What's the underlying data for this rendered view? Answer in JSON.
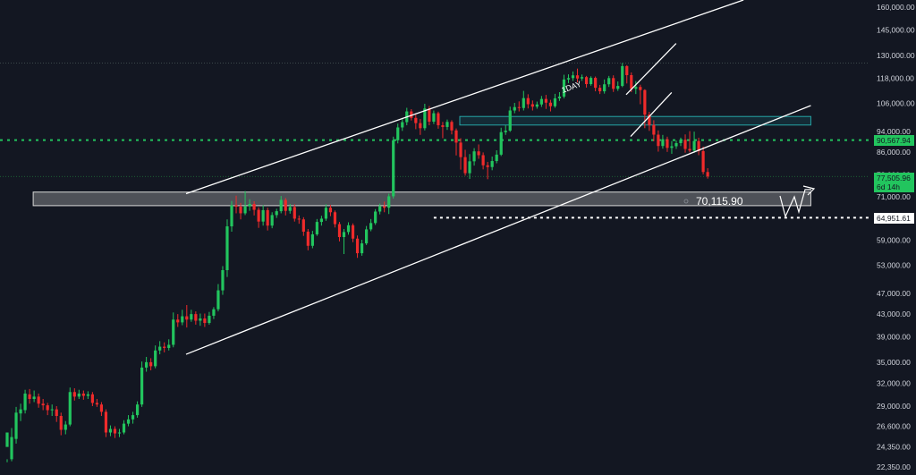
{
  "chart_data": {
    "type": "candlestick",
    "timeframe_label": "1DAY",
    "ylim": [
      22350,
      165000
    ],
    "y_scale": "log",
    "y_ticks": [
      "160,000.00",
      "145,000.00",
      "130,000.00",
      "118,000.00",
      "106,000.00",
      "94,000.00",
      "86,000.00",
      "78,000.00",
      "71,000.00",
      "65,000.00",
      "59,000.00",
      "53,000.00",
      "47,000.00",
      "43,000.00",
      "39,000.00",
      "35,000.00",
      "32,000.00",
      "29,000.00",
      "26,600.00",
      "24,350.00",
      "22,350.00"
    ],
    "levels": [
      {
        "name": "green-dotted-level",
        "value": 90567.94,
        "label": "90,567.94",
        "color": "#22c55e"
      },
      {
        "name": "white-dotted-level",
        "value": 64951.61,
        "label": "64,951.61",
        "color": "#ffffff"
      },
      {
        "name": "faint-upper-level",
        "value": 126000,
        "label": "",
        "color": "#4a5a5a"
      },
      {
        "name": "faint-price-level",
        "value": 77505.96,
        "label": "",
        "color": "#1f7a3a"
      }
    ],
    "zone_label": "70,115.90",
    "last_price": {
      "value": "77,505.96",
      "countdown": "6d 14h",
      "color": "#22c55e"
    },
    "colors": {
      "up": "#22c55e",
      "down": "#ef2b2b",
      "background": "#131722"
    },
    "candles": [
      [
        24350,
        25900,
        23100,
        22800
      ],
      [
        23100,
        25400,
        26400,
        22900
      ],
      [
        25200,
        28200,
        28900,
        24700
      ],
      [
        28100,
        28600,
        29300,
        27200
      ],
      [
        28500,
        30600,
        31100,
        28100
      ],
      [
        30500,
        29900,
        31200,
        29300
      ],
      [
        29900,
        30200,
        31000,
        29500
      ],
      [
        30200,
        29300,
        30600,
        28800
      ],
      [
        29300,
        29100,
        29900,
        28500
      ],
      [
        29100,
        28500,
        29400,
        27900
      ],
      [
        28500,
        28600,
        29200,
        27800
      ],
      [
        28600,
        27800,
        29000,
        27100
      ],
      [
        27800,
        26200,
        28200,
        25600
      ],
      [
        26200,
        26800,
        27200,
        25700
      ],
      [
        26800,
        30800,
        31400,
        26600
      ],
      [
        30800,
        30200,
        31300,
        29700
      ],
      [
        30200,
        30600,
        31100,
        29900
      ],
      [
        30600,
        30300,
        31000,
        29800
      ],
      [
        30300,
        30500,
        30900,
        29900
      ],
      [
        30500,
        29400,
        30800,
        29000
      ],
      [
        29400,
        29200,
        29900,
        28900
      ],
      [
        29200,
        28300,
        29500,
        27800
      ],
      [
        28300,
        25900,
        28600,
        25400
      ],
      [
        25900,
        26300,
        26700,
        25500
      ],
      [
        26300,
        25800,
        26600,
        25300
      ],
      [
        25800,
        25900,
        26300,
        25400
      ],
      [
        25900,
        26900,
        27300,
        25700
      ],
      [
        26900,
        27400,
        27900,
        26600
      ],
      [
        27400,
        27900,
        28300,
        26900
      ],
      [
        27900,
        29200,
        29600,
        27600
      ],
      [
        29200,
        34200,
        35100,
        28900
      ],
      [
        34200,
        35000,
        35800,
        33600
      ],
      [
        35000,
        34400,
        35600,
        33800
      ],
      [
        34400,
        36800,
        37600,
        34100
      ],
      [
        36800,
        37400,
        38300,
        36200
      ],
      [
        37400,
        37200,
        38100,
        36500
      ],
      [
        37200,
        37700,
        38600,
        36800
      ],
      [
        37700,
        42000,
        43300,
        37300
      ],
      [
        42000,
        41500,
        43000,
        40700
      ],
      [
        41500,
        42600,
        43800,
        41000
      ],
      [
        42600,
        42000,
        44700,
        40600
      ],
      [
        42000,
        43000,
        43800,
        41600
      ],
      [
        43000,
        41800,
        43500,
        41100
      ],
      [
        41800,
        42200,
        43100,
        40900
      ],
      [
        42200,
        41400,
        43100,
        40700
      ],
      [
        41400,
        42700,
        43400,
        41100
      ],
      [
        42700,
        43900,
        44300,
        42100
      ],
      [
        43900,
        47600,
        48900,
        43500
      ],
      [
        47600,
        51900,
        52800,
        46700
      ],
      [
        51900,
        62600,
        64500,
        50400
      ],
      [
        62600,
        68500,
        69800,
        61200
      ],
      [
        68500,
        68100,
        71400,
        66200
      ],
      [
        68100,
        66200,
        69200,
        64500
      ],
      [
        66200,
        68200,
        72800,
        65700
      ],
      [
        68200,
        68900,
        70300,
        66900
      ],
      [
        68900,
        67200,
        69700,
        65600
      ],
      [
        67200,
        63900,
        67900,
        62200
      ],
      [
        63900,
        67100,
        68500,
        62800
      ],
      [
        67100,
        62800,
        67800,
        61500
      ],
      [
        62800,
        65700,
        66500,
        62100
      ],
      [
        65700,
        66800,
        67500,
        64900
      ],
      [
        66800,
        70100,
        71300,
        66200
      ],
      [
        70100,
        66900,
        70700,
        65600
      ],
      [
        66900,
        68000,
        68900,
        66100
      ],
      [
        68000,
        64700,
        68800,
        63900
      ],
      [
        64700,
        64500,
        65600,
        63300
      ],
      [
        64500,
        61200,
        65100,
        60100
      ],
      [
        61200,
        57600,
        61900,
        56500
      ],
      [
        57600,
        60500,
        61400,
        57000
      ],
      [
        60500,
        63800,
        64600,
        60100
      ],
      [
        63800,
        64700,
        65500,
        62800
      ],
      [
        64700,
        67800,
        68800,
        64100
      ],
      [
        67800,
        66500,
        68600,
        65400
      ],
      [
        66500,
        63200,
        67000,
        62300
      ],
      [
        63200,
        59800,
        63800,
        58700
      ],
      [
        59800,
        61100,
        61900,
        55600
      ],
      [
        61100,
        62900,
        63700,
        60400
      ],
      [
        62900,
        59400,
        63400,
        58500
      ],
      [
        59400,
        55800,
        60200,
        54700
      ],
      [
        55800,
        58200,
        59100,
        55200
      ],
      [
        58200,
        61800,
        62700,
        57800
      ],
      [
        61800,
        63500,
        64600,
        61300
      ],
      [
        63500,
        66700,
        67400,
        63000
      ],
      [
        66700,
        68200,
        69000,
        65900
      ],
      [
        68200,
        67800,
        69600,
        66500
      ],
      [
        67800,
        71200,
        72000,
        66000
      ],
      [
        71200,
        90500,
        91900,
        70500
      ],
      [
        90500,
        95600,
        97200,
        89300
      ],
      [
        95600,
        97800,
        99600,
        94200
      ],
      [
        97800,
        102400,
        104000,
        96500
      ],
      [
        102400,
        99600,
        103400,
        98500
      ],
      [
        99600,
        97400,
        101000,
        94900
      ],
      [
        97400,
        95300,
        99100,
        92600
      ],
      [
        95300,
        103700,
        105800,
        94400
      ],
      [
        103700,
        98000,
        104800,
        96500
      ],
      [
        98000,
        101600,
        102800,
        97000
      ],
      [
        101600,
        96500,
        102300,
        95100
      ],
      [
        96500,
        95800,
        97900,
        91300
      ],
      [
        95800,
        97900,
        98900,
        94600
      ],
      [
        97900,
        94400,
        98600,
        92800
      ],
      [
        94400,
        89600,
        95200,
        84800
      ],
      [
        89600,
        84200,
        91300,
        79800
      ],
      [
        84200,
        78600,
        86900,
        77800
      ],
      [
        78600,
        82700,
        85300,
        76700
      ],
      [
        82700,
        86300,
        87500,
        81200
      ],
      [
        86300,
        84900,
        88900,
        83600
      ],
      [
        84900,
        81300,
        85900,
        79900
      ],
      [
        81300,
        80700,
        82500,
        76600
      ],
      [
        80700,
        82800,
        84400,
        79600
      ],
      [
        82800,
        85100,
        86700,
        82000
      ],
      [
        85100,
        93700,
        95500,
        84600
      ],
      [
        93700,
        94300,
        96500,
        92600
      ],
      [
        94300,
        102800,
        104500,
        93800
      ],
      [
        102800,
        104300,
        106200,
        101600
      ],
      [
        104300,
        103900,
        106900,
        102400
      ],
      [
        103900,
        108400,
        111800,
        102800
      ],
      [
        108400,
        105600,
        110200,
        103700
      ],
      [
        105600,
        104500,
        107300,
        102800
      ],
      [
        104500,
        105500,
        106800,
        103600
      ],
      [
        105500,
        108000,
        109400,
        104400
      ],
      [
        108000,
        106300,
        109900,
        103500
      ],
      [
        106300,
        104700,
        107600,
        102400
      ],
      [
        104700,
        108300,
        110400,
        104000
      ],
      [
        108300,
        109100,
        111200,
        107100
      ],
      [
        109100,
        117400,
        119800,
        108300
      ],
      [
        117400,
        118100,
        120000,
        115600
      ],
      [
        118100,
        119500,
        121500,
        116700
      ],
      [
        119500,
        117900,
        123000,
        115900
      ],
      [
        117900,
        118600,
        119900,
        116700
      ],
      [
        118600,
        115100,
        119200,
        113400
      ],
      [
        115100,
        118200,
        119000,
        114300
      ],
      [
        118200,
        113300,
        118900,
        111600
      ],
      [
        113300,
        111600,
        114700,
        110300
      ],
      [
        111600,
        115000,
        117400,
        110500
      ],
      [
        115000,
        118100,
        119200,
        113700
      ],
      [
        118100,
        112800,
        119500,
        111300
      ],
      [
        112800,
        114200,
        116400,
        111800
      ],
      [
        114200,
        124300,
        126000,
        113600
      ],
      [
        124300,
        119600,
        124800,
        115400
      ],
      [
        119600,
        112800,
        121000,
        111200
      ],
      [
        112800,
        113700,
        116600,
        110300
      ],
      [
        113700,
        112200,
        114800,
        105600
      ],
      [
        112200,
        101000,
        112600,
        95300
      ],
      [
        101000,
        96600,
        102200,
        94200
      ],
      [
        96600,
        92700,
        98600,
        90100
      ],
      [
        92700,
        88300,
        94400,
        86200
      ],
      [
        88300,
        90900,
        92600,
        87300
      ],
      [
        90900,
        87600,
        91900,
        86100
      ],
      [
        87600,
        88200,
        90200,
        85400
      ],
      [
        88200,
        89400,
        90400,
        87200
      ],
      [
        89400,
        90700,
        91500,
        88300
      ],
      [
        90700,
        87200,
        92800,
        85800
      ],
      [
        87200,
        86600,
        94100,
        85900
      ],
      [
        86600,
        90200,
        93900,
        85800
      ],
      [
        90200,
        86400,
        91500,
        84900
      ],
      [
        86400,
        79000,
        88100,
        78200
      ],
      [
        79000,
        77506,
        80300,
        76800
      ]
    ],
    "channels": [
      {
        "name": "outer-channel-upper",
        "from": [
          0,
          72000
        ],
        "to": [
          156,
          165000
        ]
      },
      {
        "name": "outer-channel-lower",
        "from": [
          0,
          36200
        ],
        "to": [
          171,
          105000
        ]
      },
      {
        "name": "inner-channel-upper",
        "from": [
          98,
          110000
        ],
        "to": [
          141,
          137000
        ]
      },
      {
        "name": "inner-channel-lower",
        "from": [
          99,
          92000
        ],
        "to": [
          140,
          111000
        ]
      }
    ],
    "boxes": [
      {
        "name": "support-zone",
        "from_index": 5,
        "to_index": 171,
        "top": 72500,
        "bottom": 68400
      },
      {
        "name": "resistance-zone",
        "from_index": 100,
        "to_index": 171,
        "top": 100200,
        "bottom": 96600
      }
    ]
  }
}
